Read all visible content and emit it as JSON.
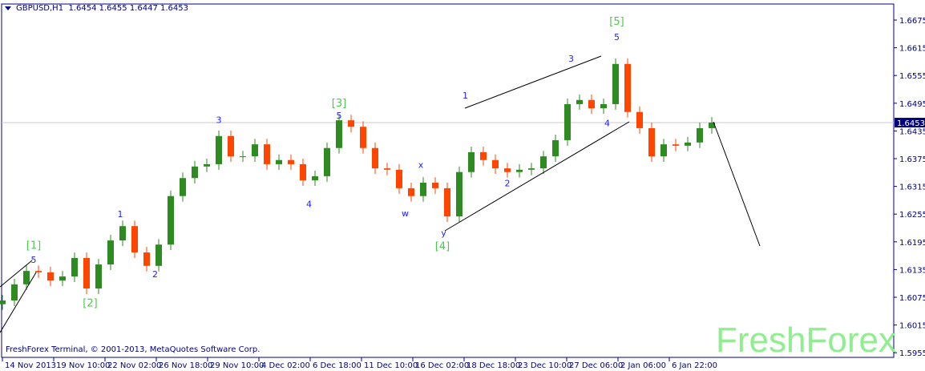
{
  "header": {
    "symbol": "GBPUSD,H1",
    "open": "1.6454",
    "high": "1.6455",
    "low": "1.6447",
    "close": "1.6453"
  },
  "copyright": "FreshForex Terminal, © 2001-2013, MetaQuotes Software Corp.",
  "watermark": "FreshForex",
  "colors": {
    "bull": "#2e8b22",
    "bear": "#ff4500",
    "frame": "#000080",
    "wave_minor": "#1f1fff",
    "wave_major": "#4cc94c",
    "watermark": "#90ee90"
  },
  "chart_data": {
    "type": "candlestick",
    "title": "GBPUSD,H1",
    "ylim": [
      1.5955,
      1.6675
    ],
    "y_ticks": [
      "1.6675",
      "1.6615",
      "1.6555",
      "1.6495",
      "1.6435",
      "1.6375",
      "1.6315",
      "1.6255",
      "1.6195",
      "1.6135",
      "1.6075",
      "1.6015",
      "1.5955"
    ],
    "x_ticks": [
      "14 Nov 2013",
      "19 Nov 10:00",
      "22 Nov 02:00",
      "26 Nov 18:00",
      "29 Nov 10:00",
      "4 Dec 02:00",
      "6 Dec 18:00",
      "11 Dec 10:00",
      "16 Dec 02:00",
      "18 Dec 18:00",
      "23 Dec 10:00",
      "27 Dec 06:00",
      "2 Jan 06:00",
      "6 Jan 22:00"
    ],
    "current_price": "1.6453",
    "close": [
      1.6068,
      1.6103,
      1.6132,
      1.6129,
      1.6111,
      1.612,
      1.616,
      1.6094,
      1.6146,
      1.6198,
      1.6229,
      1.6172,
      1.6143,
      1.6189,
      1.6294,
      1.6333,
      1.6358,
      1.6363,
      1.6424,
      1.638,
      1.638,
      1.6406,
      1.6363,
      1.6372,
      1.6363,
      1.6328,
      1.6337,
      1.6398,
      1.6458,
      1.6444,
      1.6398,
      1.6354,
      1.6351,
      1.6311,
      1.6294,
      1.6323,
      1.6311,
      1.625,
      1.6346,
      1.6389,
      1.6372,
      1.6354,
      1.6346,
      1.6351,
      1.6354,
      1.638,
      1.6415,
      1.6493,
      1.6502,
      1.6484,
      1.6493,
      1.658,
      1.6476,
      1.6441,
      1.638,
      1.6406,
      1.6403,
      1.641,
      1.6441,
      1.6453
    ],
    "wave_labels": [
      {
        "text": "[1]",
        "price": 1.618,
        "bar": 2.6,
        "major": true
      },
      {
        "text": "5",
        "price": 1.615,
        "bar": 2.6
      },
      {
        "text": "[2]",
        "price": 1.6055,
        "bar": 7.3,
        "major": true
      },
      {
        "text": "1",
        "price": 1.6248,
        "bar": 9.8
      },
      {
        "text": "2",
        "price": 1.6118,
        "bar": 12.7
      },
      {
        "text": "3",
        "price": 1.6452,
        "bar": 18
      },
      {
        "text": "4",
        "price": 1.627,
        "bar": 25.5
      },
      {
        "text": "5",
        "price": 1.6462,
        "bar": 28
      },
      {
        "text": "[3]",
        "price": 1.6488,
        "bar": 28,
        "major": true
      },
      {
        "text": "w",
        "price": 1.625,
        "bar": 33.5
      },
      {
        "text": "x",
        "price": 1.6355,
        "bar": 34.8
      },
      {
        "text": "y",
        "price": 1.6208,
        "bar": 36.7
      },
      {
        "text": "[4]",
        "price": 1.6178,
        "bar": 36.6,
        "major": true
      },
      {
        "text": "1",
        "price": 1.6505,
        "bar": 38.5
      },
      {
        "text": "2",
        "price": 1.6315,
        "bar": 42
      },
      {
        "text": "3",
        "price": 1.6585,
        "bar": 47.3
      },
      {
        "text": "4",
        "price": 1.6445,
        "bar": 50.3
      },
      {
        "text": "5",
        "price": 1.6632,
        "bar": 51.1
      },
      {
        "text": "[5]",
        "price": 1.6665,
        "bar": 51.1,
        "major": true
      }
    ]
  }
}
